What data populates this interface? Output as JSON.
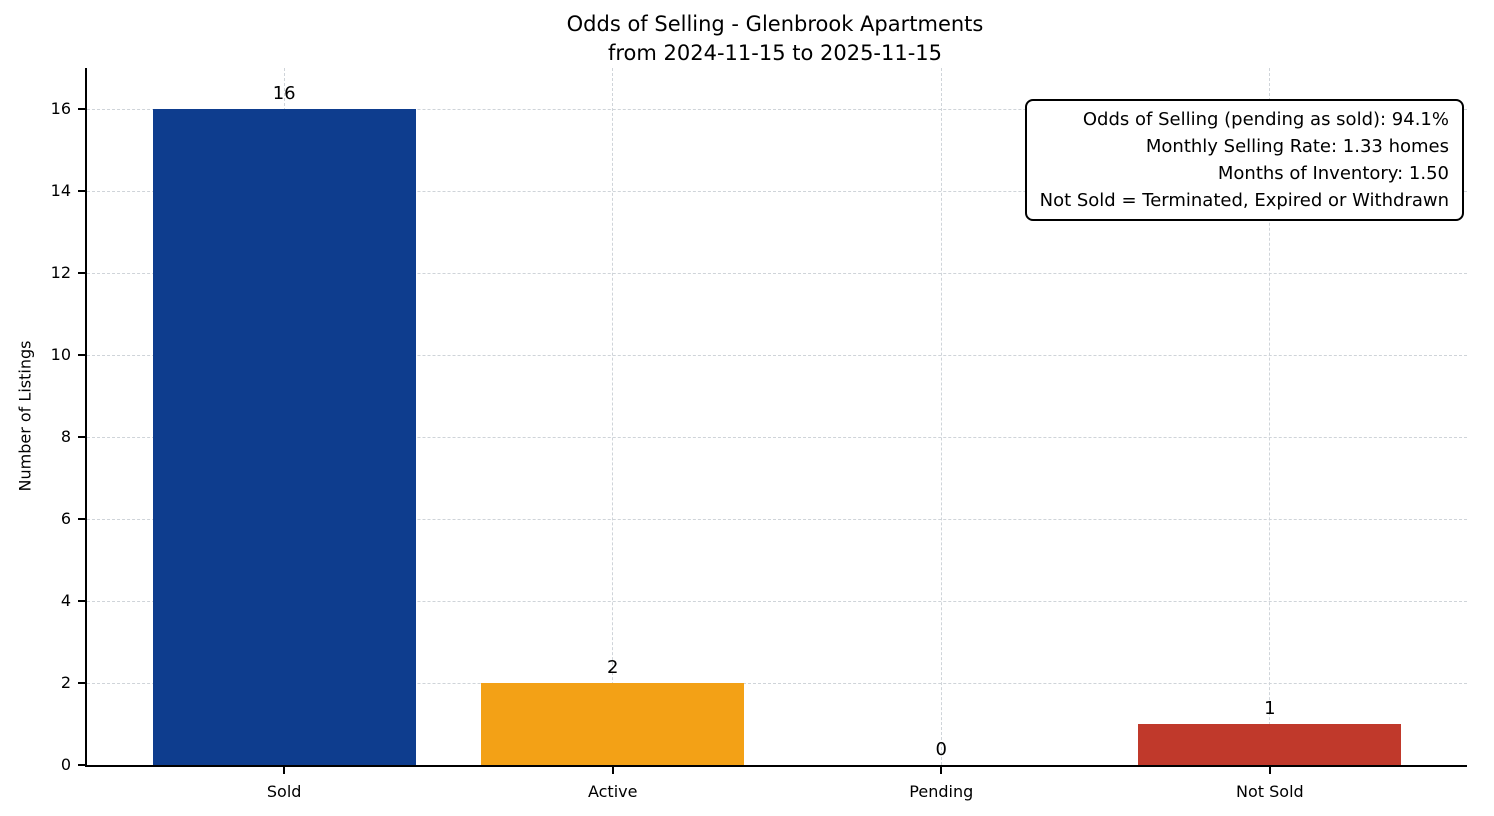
{
  "chart_data": {
    "type": "bar",
    "title": "Odds of Selling - Glenbrook Apartments\nfrom 2024-11-15 to 2025-11-15",
    "title_line1": "Odds of Selling - Glenbrook Apartments",
    "title_line2": "from 2024-11-15 to 2025-11-15",
    "categories": [
      "Sold",
      "Active",
      "Pending",
      "Not Sold"
    ],
    "values": [
      16,
      2,
      0,
      1
    ],
    "bar_labels": [
      "16",
      "2",
      "0",
      "1"
    ],
    "bar_colors": [
      "#0e3d8e",
      "#f3a116",
      "#808080",
      "#c0392b"
    ],
    "xlabel": "",
    "ylabel": "Number of Listings",
    "yticks": [
      0,
      2,
      4,
      6,
      8,
      10,
      12,
      14,
      16
    ],
    "ylim": [
      0,
      17
    ],
    "grid": "dashed",
    "legend": "none",
    "annotation": {
      "position": "top-right",
      "lines": [
        "Odds of Selling (pending as sold): 94.1%",
        "Monthly Selling Rate: 1.33 homes",
        "Months of Inventory: 1.50",
        "Not Sold = Terminated, Expired or Withdrawn"
      ]
    }
  }
}
